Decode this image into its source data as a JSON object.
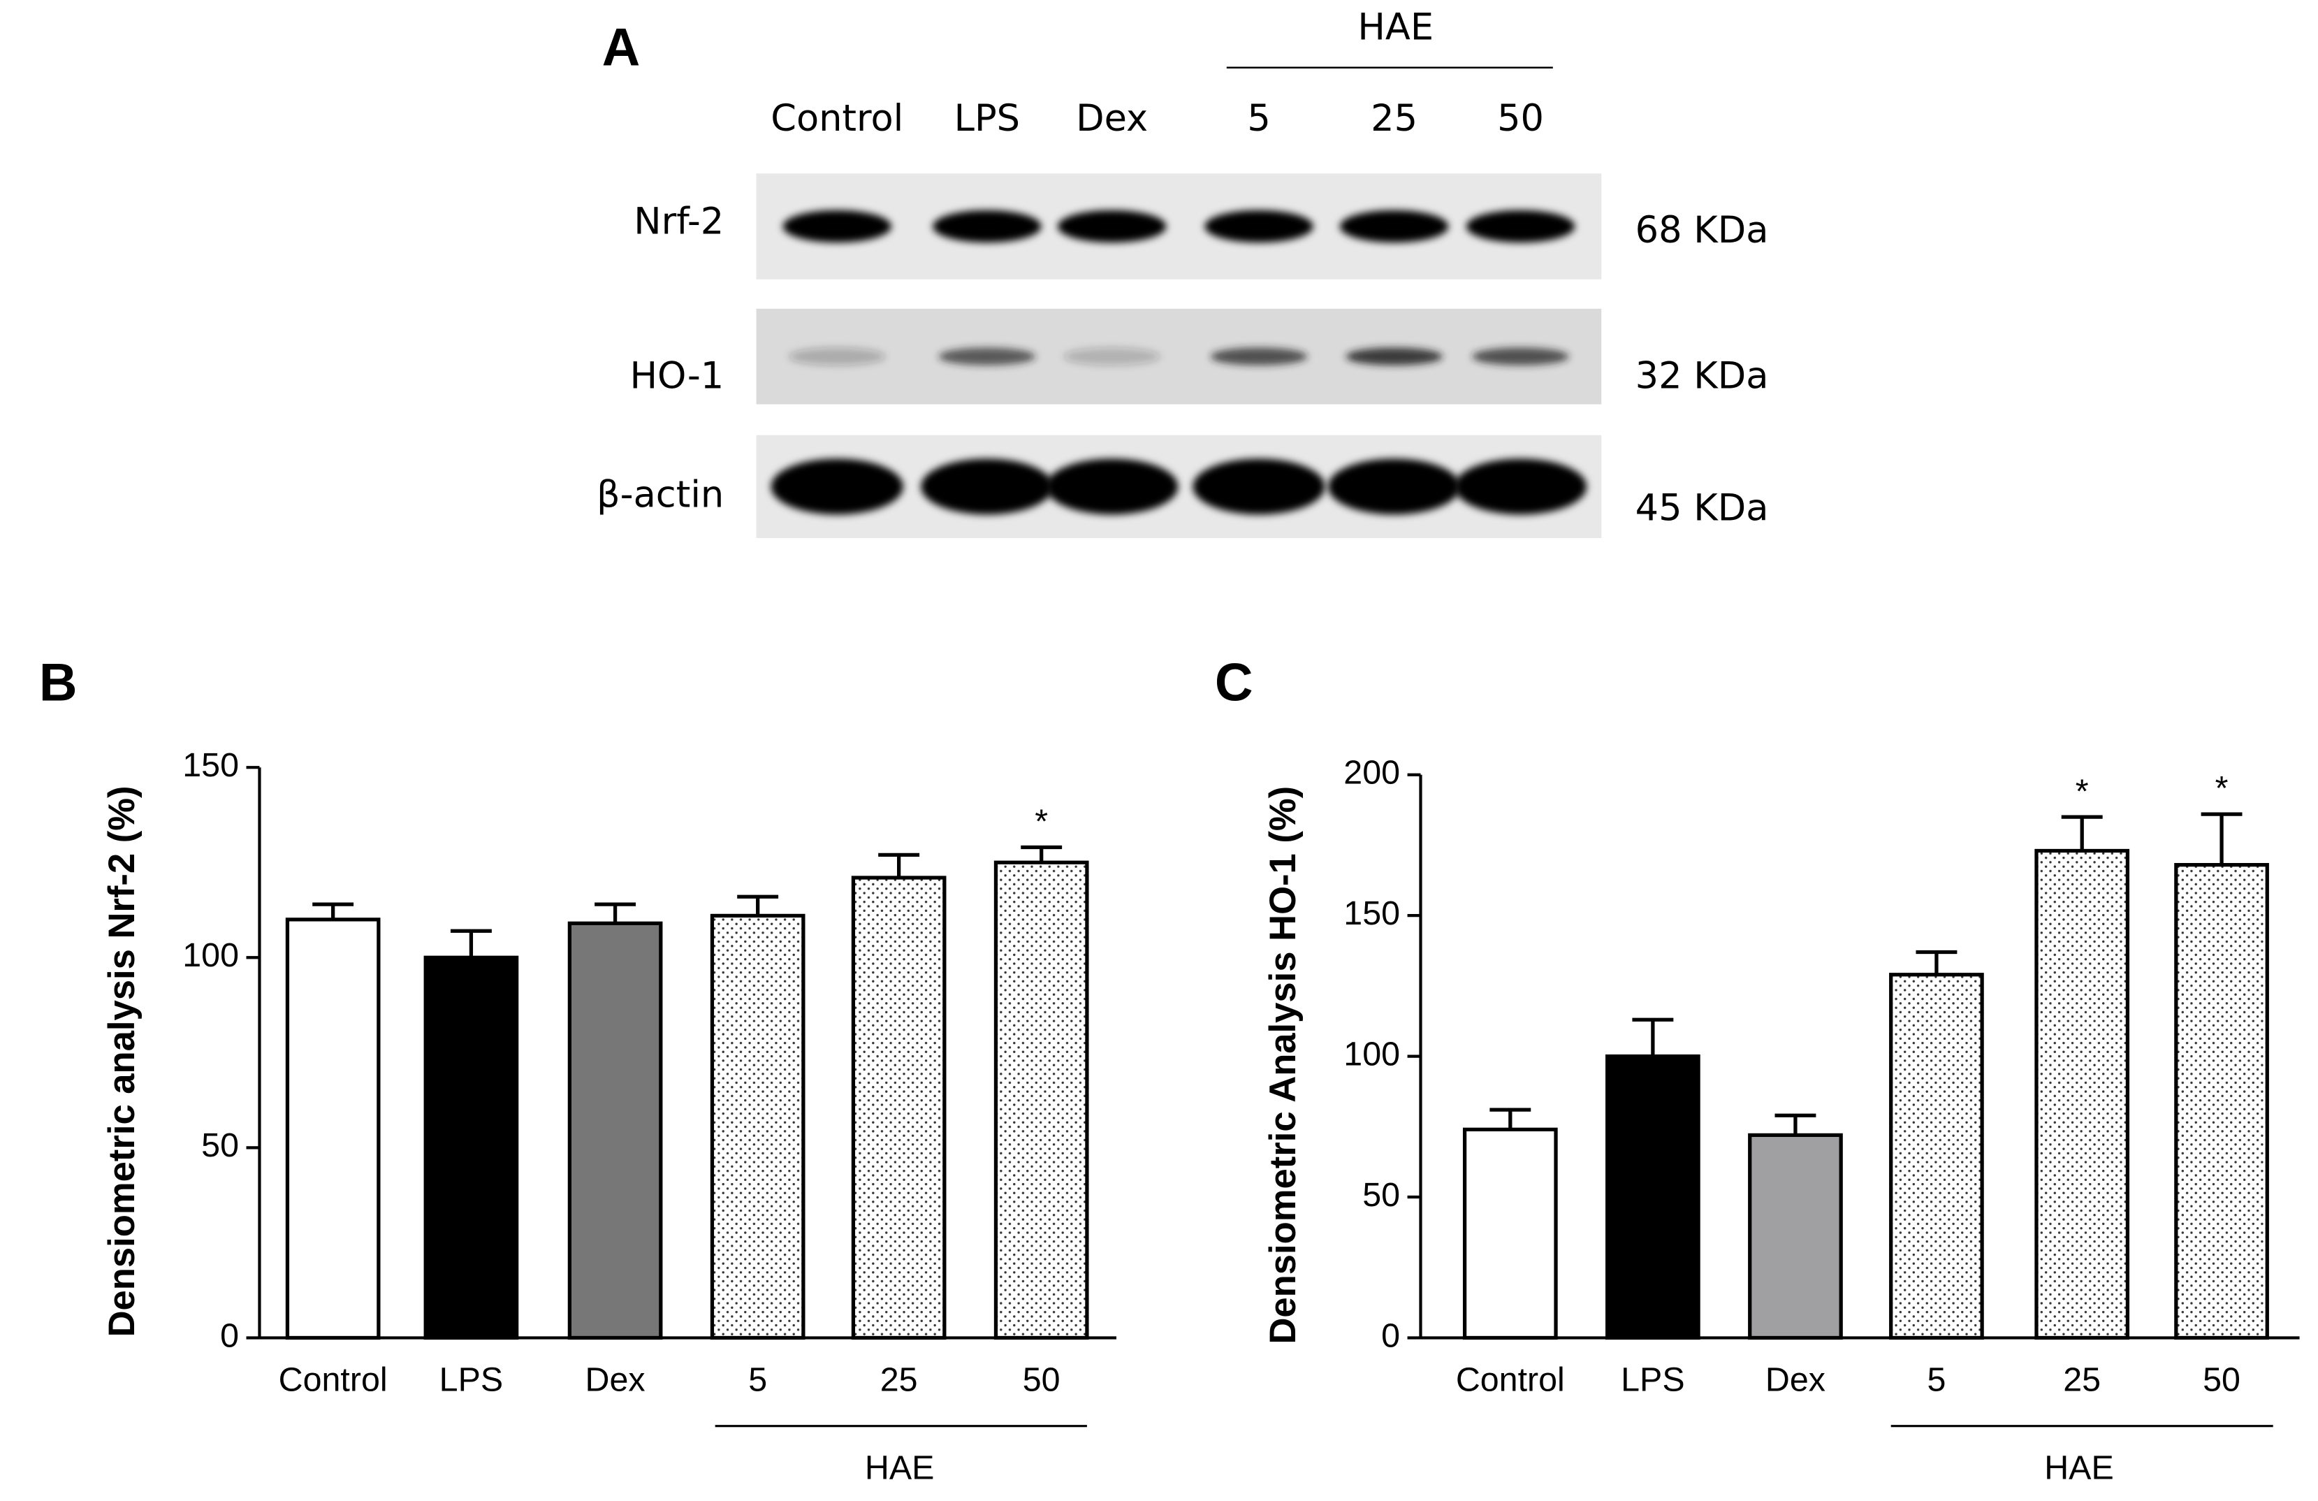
{
  "blot": {
    "panel_label": "A",
    "group_label": "HAE",
    "lanes": [
      "Control",
      "LPS",
      "Dex",
      "5",
      "25",
      "50"
    ],
    "rows": [
      {
        "protein": "Nrf-2",
        "size": "68 KDa"
      },
      {
        "protein": "HO-1",
        "size": "32 KDa"
      },
      {
        "protein": "β-actin",
        "size": "45 KDa"
      }
    ]
  },
  "chart_data": [
    {
      "type": "bar",
      "panel_label": "B",
      "y_label": "Densiometric analysis Nrf-2 (%)",
      "categories": [
        "Control",
        "LPS",
        "Dex",
        "5",
        "25",
        "50"
      ],
      "values": [
        110,
        100,
        109,
        111,
        121,
        125
      ],
      "errors": [
        4,
        7,
        5,
        5,
        6,
        4
      ],
      "fills": [
        "#ffffff",
        "#000000",
        "#777777",
        "dots",
        "dots",
        "dots"
      ],
      "ylim": [
        0,
        150
      ],
      "yticks": [
        0,
        50,
        100,
        150
      ],
      "group": {
        "label": "HAE",
        "categories": [
          "5",
          "25",
          "50"
        ]
      },
      "annotations": [
        {
          "label": "*",
          "category": "50"
        }
      ]
    },
    {
      "type": "bar",
      "panel_label": "C",
      "y_label": "Densiometric Analysis HO-1 (%)",
      "categories": [
        "Control",
        "LPS",
        "Dex",
        "5",
        "25",
        "50"
      ],
      "values": [
        74,
        100,
        72,
        129,
        173,
        168
      ],
      "errors": [
        7,
        13,
        7,
        8,
        12,
        18
      ],
      "fills": [
        "#ffffff",
        "#000000",
        "#a0a0a3",
        "dots",
        "dots",
        "dots"
      ],
      "ylim": [
        0,
        200
      ],
      "yticks": [
        0,
        50,
        100,
        150,
        200
      ],
      "group": {
        "label": "HAE",
        "categories": [
          "5",
          "25",
          "50"
        ]
      },
      "annotations": [
        {
          "label": "*",
          "category": "25"
        },
        {
          "label": "*",
          "category": "50"
        }
      ]
    }
  ]
}
